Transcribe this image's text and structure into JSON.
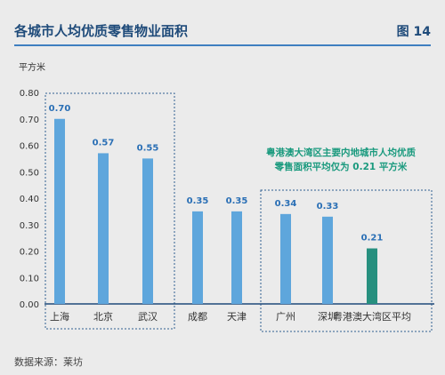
{
  "header": {
    "title": "各城市人均优质零售物业面积",
    "figure_label": "图 14"
  },
  "footer": {
    "source": "数据来源：莱坊"
  },
  "chart_data": {
    "type": "bar",
    "title": "各城市人均优质零售物业面积",
    "ylabel": "平方米",
    "xlabel": "",
    "ylim": [
      0,
      0.8
    ],
    "yticks": [
      "0.00",
      "0.10",
      "0.20",
      "0.30",
      "0.40",
      "0.50",
      "0.60",
      "0.70",
      "0.80"
    ],
    "categories": [
      "上海",
      "北京",
      "武汉",
      "成都",
      "天津",
      "广州",
      "深圳",
      "粤港澳大湾区平均"
    ],
    "values": [
      0.7,
      0.57,
      0.55,
      0.35,
      0.35,
      0.34,
      0.33,
      0.21
    ],
    "value_labels": [
      "0.70",
      "0.57",
      "0.55",
      "0.35",
      "0.35",
      "0.34",
      "0.33",
      "0.21"
    ],
    "bar_colors": [
      "#5ea6dc",
      "#5ea6dc",
      "#5ea6dc",
      "#5ea6dc",
      "#5ea6dc",
      "#5ea6dc",
      "#5ea6dc",
      "#27907f"
    ],
    "groups": [
      {
        "name": "group-1",
        "members": [
          0,
          1,
          2
        ],
        "style": "dashed-box"
      },
      {
        "name": "group-3",
        "members": [
          5,
          6,
          7
        ],
        "style": "dashed-box"
      }
    ],
    "annotation": {
      "lines": [
        "粤港澳大湾区主要内地城市人均优质",
        "零售面积平均仅为 0.21 平方米"
      ],
      "color": "#1a9a7e"
    },
    "grid": false,
    "axis_color": "#1f4b7a",
    "text_color": "#333333",
    "value_label_color": "#2a6fb5"
  }
}
